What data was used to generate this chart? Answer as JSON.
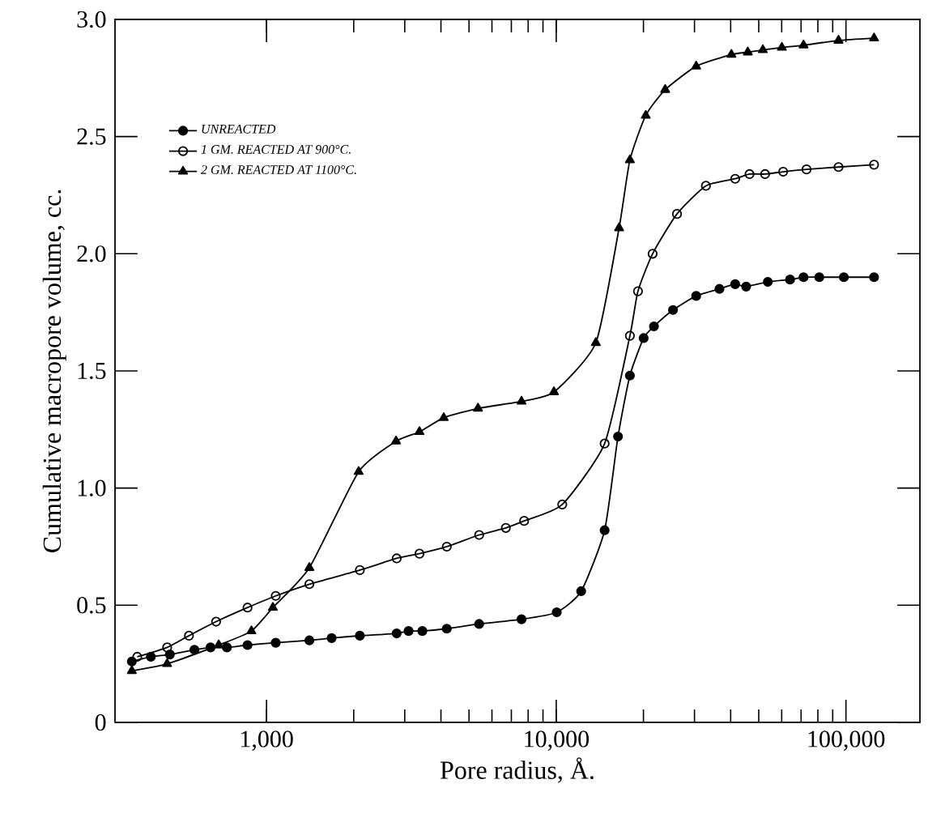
{
  "chart_data": {
    "type": "line",
    "xlabel": "Pore radius, Å.",
    "ylabel": "Cumulative macropore volume, cc.",
    "log": "x",
    "xlim": [
      300,
      180000
    ],
    "xticks": [
      {
        "value": 1000,
        "label": "1,000"
      },
      {
        "value": 10000,
        "label": "10,000"
      },
      {
        "value": 100000,
        "label": "100,000"
      }
    ],
    "ylim": [
      0,
      3.0
    ],
    "yticks": [
      0,
      0.5,
      {
        "value": 1.0,
        "label": "1.0"
      },
      1.5,
      {
        "value": 2.0,
        "label": "2.0"
      },
      2.5,
      {
        "value": 3.0,
        "label": "3.0"
      }
    ],
    "grid": false,
    "legend": "top left",
    "series": [
      {
        "name": "UNREACTED",
        "color": "#000000",
        "marker": "circle",
        "x": [
          343,
          399,
          464,
          564,
          641,
          730,
          860,
          1076,
          1406,
          1678,
          2100,
          2814,
          3093,
          3450,
          4190,
          5420,
          7590,
          10040,
          12190,
          14690,
          16340,
          17960,
          20030,
          21740,
          25290,
          30410,
          36590,
          41460,
          45240,
          53740,
          64130,
          71380,
          80900,
          98330,
          125000
        ],
        "values": [
          0.26,
          0.28,
          0.29,
          0.31,
          0.32,
          0.32,
          0.33,
          0.34,
          0.35,
          0.36,
          0.37,
          0.38,
          0.39,
          0.39,
          0.4,
          0.42,
          0.44,
          0.47,
          0.56,
          0.82,
          1.22,
          1.48,
          1.64,
          1.69,
          1.76,
          1.82,
          1.85,
          1.87,
          1.86,
          1.88,
          1.89,
          1.9,
          1.9,
          1.9,
          1.9
        ]
      },
      {
        "name": "1 GM. REACTED AT 900°C.",
        "color": "#000000",
        "marker": "open circle",
        "x": [
          358,
          454,
          540,
          670,
          860,
          1076,
          1406,
          2100,
          2814,
          3373,
          4190,
          5420,
          6700,
          7750,
          10490,
          14690,
          17960,
          19150,
          21510,
          26110,
          32860,
          41460,
          46470,
          52580,
          60710,
          73090,
          94260,
          125000
        ],
        "values": [
          0.28,
          0.32,
          0.37,
          0.43,
          0.49,
          0.54,
          0.59,
          0.65,
          0.7,
          0.72,
          0.75,
          0.8,
          0.83,
          0.86,
          0.93,
          1.19,
          1.65,
          1.84,
          2.0,
          2.17,
          2.29,
          2.32,
          2.34,
          2.34,
          2.35,
          2.36,
          2.37,
          2.38
        ]
      },
      {
        "name": "2 GM. REACTED AT 1100°C.",
        "color": "#000000",
        "marker": "triangle",
        "x": [
          343,
          454,
          684,
          887,
          1052,
          1406,
          2080,
          2800,
          3373,
          4090,
          5370,
          7590,
          9820,
          13700,
          16480,
          17960,
          20370,
          23770,
          30410,
          40240,
          45840,
          51650,
          60080,
          71380,
          94260,
          125000
        ],
        "values": [
          0.22,
          0.25,
          0.33,
          0.39,
          0.49,
          0.66,
          1.07,
          1.2,
          1.24,
          1.3,
          1.34,
          1.37,
          1.41,
          1.62,
          2.11,
          2.4,
          2.59,
          2.7,
          2.8,
          2.85,
          2.86,
          2.87,
          2.88,
          2.89,
          2.91,
          2.92
        ]
      }
    ]
  }
}
